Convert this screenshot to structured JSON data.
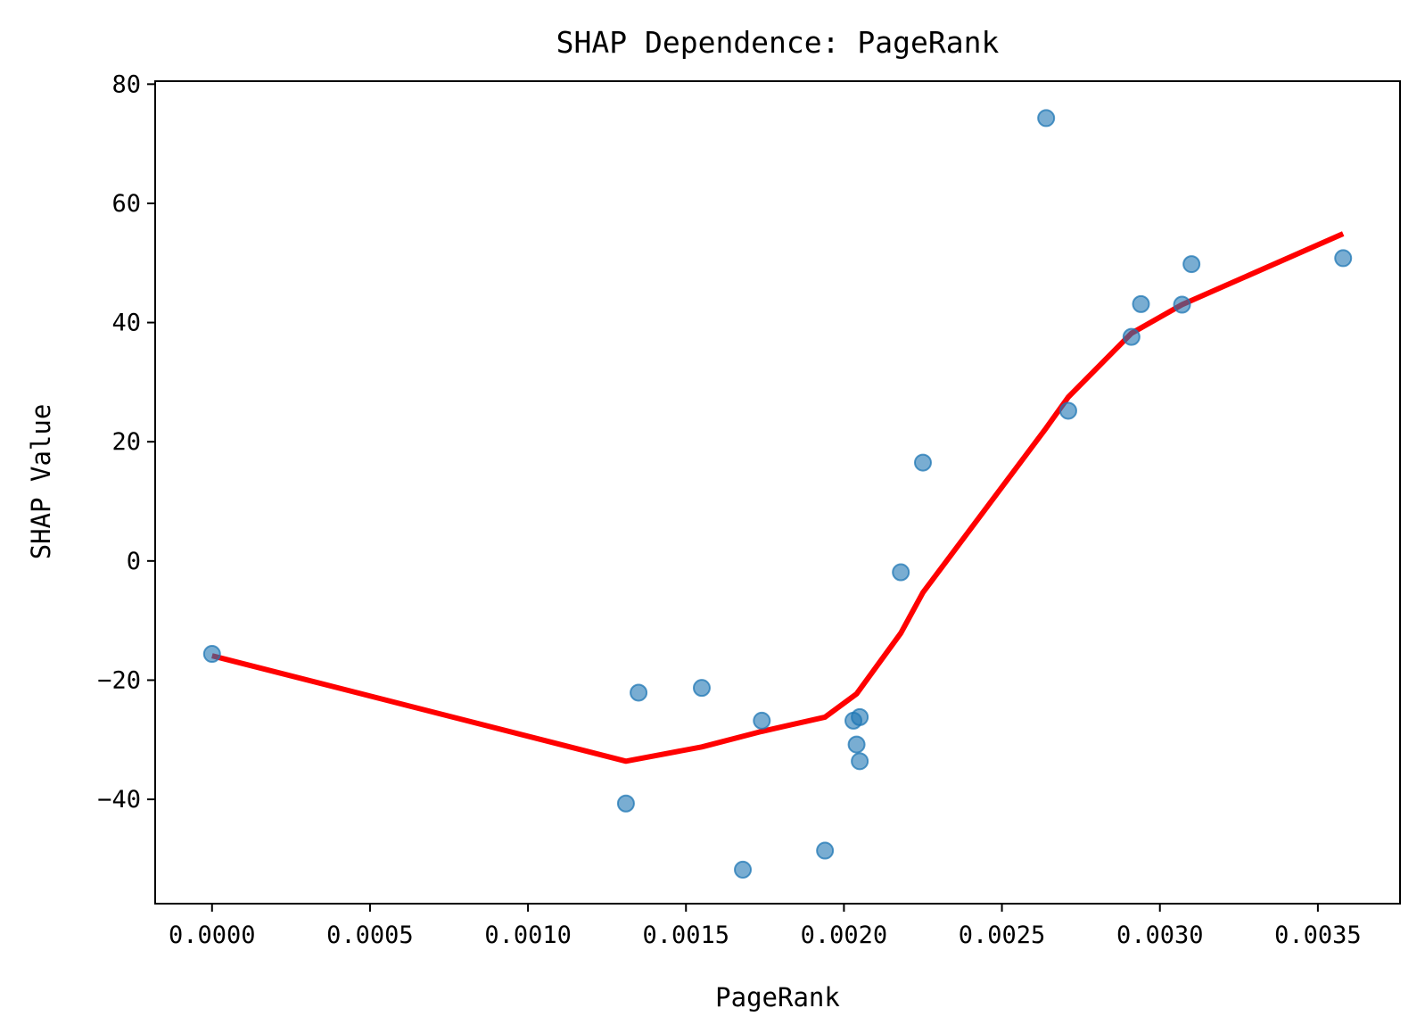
{
  "chart_data": {
    "type": "scatter",
    "title": "SHAP Dependence: PageRank",
    "xlabel": "PageRank",
    "ylabel": "SHAP Value",
    "xlim": [
      -0.00018,
      0.00376
    ],
    "ylim": [
      -57.5,
      80.5
    ],
    "x_ticks": [
      0.0,
      0.0005,
      0.001,
      0.0015,
      0.002,
      0.0025,
      0.003,
      0.0035
    ],
    "x_tick_labels": [
      "0.0000",
      "0.0005",
      "0.0010",
      "0.0015",
      "0.0020",
      "0.0025",
      "0.0030",
      "0.0035"
    ],
    "y_ticks": [
      -40,
      -20,
      0,
      20,
      40,
      60,
      80
    ],
    "y_tick_labels": [
      "−40",
      "−20",
      "0",
      "20",
      "40",
      "60",
      "80"
    ],
    "grid": false,
    "series": [
      {
        "kind": "scatter",
        "color": "#1f77b4",
        "points": [
          [
            0.0,
            -15.6
          ],
          [
            0.00131,
            -40.7
          ],
          [
            0.00135,
            -22.1
          ],
          [
            0.00155,
            -21.3
          ],
          [
            0.00168,
            -51.8
          ],
          [
            0.00174,
            -26.8
          ],
          [
            0.00194,
            -48.6
          ],
          [
            0.00203,
            -26.8
          ],
          [
            0.00204,
            -30.8
          ],
          [
            0.00205,
            -26.2
          ],
          [
            0.00205,
            -33.6
          ],
          [
            0.00218,
            -1.9
          ],
          [
            0.00225,
            16.5
          ],
          [
            0.00264,
            74.3
          ],
          [
            0.00271,
            25.2
          ],
          [
            0.00291,
            37.6
          ],
          [
            0.00294,
            43.1
          ],
          [
            0.00307,
            43.0
          ],
          [
            0.0031,
            49.8
          ],
          [
            0.00358,
            50.8
          ]
        ]
      },
      {
        "kind": "line",
        "color": "#ff0000",
        "points": [
          [
            0.0,
            -15.9
          ],
          [
            0.00131,
            -33.6
          ],
          [
            0.00155,
            -31.2
          ],
          [
            0.00174,
            -28.6
          ],
          [
            0.00194,
            -26.2
          ],
          [
            0.00204,
            -22.3
          ],
          [
            0.00218,
            -12.1
          ],
          [
            0.00225,
            -5.3
          ],
          [
            0.00264,
            22.3
          ],
          [
            0.00271,
            27.5
          ],
          [
            0.00291,
            38.2
          ],
          [
            0.00307,
            43.0
          ],
          [
            0.00358,
            54.9
          ]
        ]
      }
    ]
  }
}
